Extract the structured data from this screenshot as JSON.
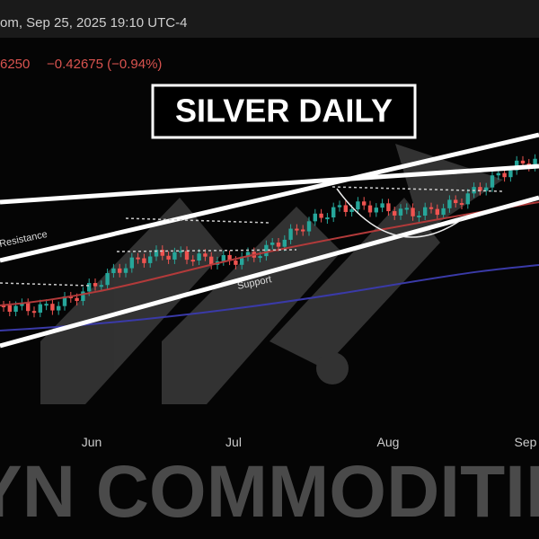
{
  "header": {
    "timestamp": "om, Sep 25, 2025 19:10 UTC-4",
    "price": "6250",
    "change": "−0.42675 (−0.94%)"
  },
  "title": "SILVER DAILY",
  "annotations": {
    "resistance": "Resistance",
    "support": "Support"
  },
  "months": [
    "Jun",
    "Jul",
    "Aug",
    "Sep"
  ],
  "watermark": "YN COMMODITIES"
}
